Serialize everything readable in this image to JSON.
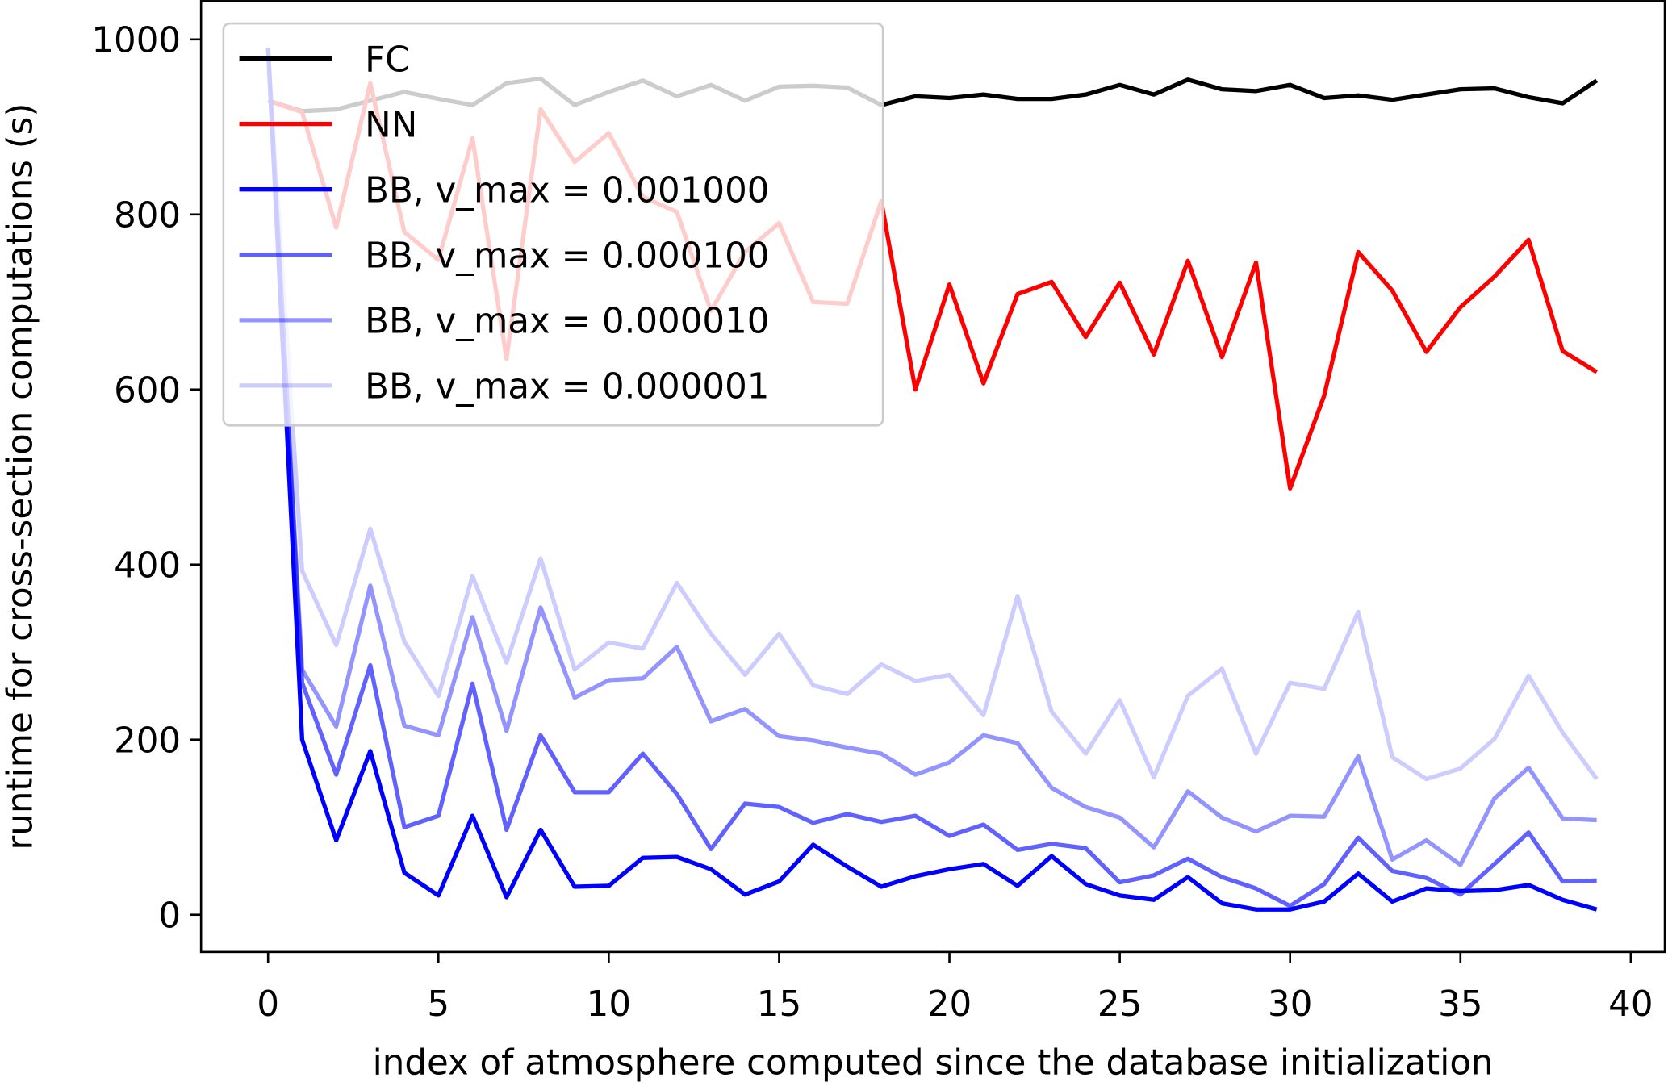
{
  "chart_data": {
    "type": "line",
    "title": "",
    "xlabel": "index of atmosphere computed since the database initialization",
    "ylabel": "runtime for cross-section computations (s)",
    "xlim": [
      -2,
      41
    ],
    "ylim": [
      -43,
      1045
    ],
    "xticks": [
      "0",
      "5",
      "10",
      "15",
      "20",
      "25",
      "30",
      "35",
      "40"
    ],
    "yticks": [
      "0",
      "200",
      "400",
      "600",
      "800",
      "1000"
    ],
    "legend_position": "top-left",
    "x": [
      0,
      1,
      2,
      3,
      4,
      5,
      6,
      7,
      8,
      9,
      10,
      11,
      12,
      13,
      14,
      15,
      16,
      17,
      18,
      19,
      20,
      21,
      22,
      23,
      24,
      25,
      26,
      27,
      28,
      29,
      30,
      31,
      32,
      33,
      34,
      35,
      36,
      37,
      38,
      39
    ],
    "series": [
      {
        "name": "FC",
        "color": "#000000",
        "opacity": 1,
        "values": [
          930,
          918,
          920,
          930,
          940,
          932,
          925,
          950,
          955,
          925,
          940,
          953,
          935,
          948,
          930,
          946,
          947,
          945,
          925,
          935,
          933,
          937,
          932,
          932,
          937,
          948,
          937,
          954,
          943,
          941,
          948,
          933,
          936,
          931,
          937,
          943,
          944,
          934,
          927,
          953
        ]
      },
      {
        "name": "NN",
        "color": "#ff0000",
        "opacity": 1,
        "values": [
          930,
          917,
          785,
          950,
          780,
          748,
          887,
          635,
          920,
          860,
          893,
          820,
          803,
          690,
          757,
          790,
          700,
          698,
          815,
          600,
          720,
          607,
          709,
          723,
          660,
          722,
          640,
          747,
          637,
          745,
          487,
          593,
          757,
          713,
          643,
          694,
          729,
          771,
          644,
          620
        ]
      },
      {
        "name": "BB, v_max = 0.001000",
        "color": "#0000ff",
        "opacity": 1,
        "values": [
          990,
          200,
          85,
          187,
          48,
          22,
          113,
          20,
          97,
          32,
          33,
          65,
          66,
          52,
          23,
          38,
          80,
          55,
          32,
          44,
          52,
          58,
          33,
          67,
          35,
          22,
          17,
          43,
          13,
          6,
          6,
          15,
          47,
          15,
          30,
          27,
          28,
          34,
          17,
          6
        ]
      },
      {
        "name": "BB, v_max = 0.000100",
        "color": "#0000ff",
        "opacity": 0.62,
        "values": [
          990,
          265,
          160,
          285,
          100,
          113,
          264,
          97,
          205,
          140,
          140,
          184,
          138,
          75,
          127,
          123,
          105,
          115,
          106,
          113,
          90,
          103,
          74,
          81,
          76,
          37,
          45,
          64,
          43,
          30,
          10,
          35,
          88,
          50,
          42,
          23,
          58,
          94,
          38,
          39
        ]
      },
      {
        "name": "BB, v_max = 0.000010",
        "color": "#0000ff",
        "opacity": 0.42,
        "values": [
          990,
          280,
          215,
          376,
          216,
          205,
          340,
          210,
          351,
          248,
          268,
          270,
          306,
          221,
          235,
          204,
          199,
          191,
          184,
          160,
          174,
          205,
          196,
          145,
          123,
          111,
          77,
          141,
          111,
          95,
          113,
          112,
          181,
          63,
          85,
          57,
          133,
          168,
          110,
          108
        ]
      },
      {
        "name": "BB, v_max = 0.000001",
        "color": "#0000ff",
        "opacity": 0.2,
        "values": [
          990,
          393,
          308,
          441,
          312,
          250,
          387,
          288,
          407,
          280,
          311,
          304,
          379,
          321,
          274,
          321,
          262,
          252,
          286,
          267,
          274,
          228,
          364,
          232,
          184,
          245,
          157,
          250,
          281,
          184,
          265,
          258,
          346,
          180,
          155,
          167,
          201,
          273,
          208,
          155
        ]
      }
    ]
  }
}
